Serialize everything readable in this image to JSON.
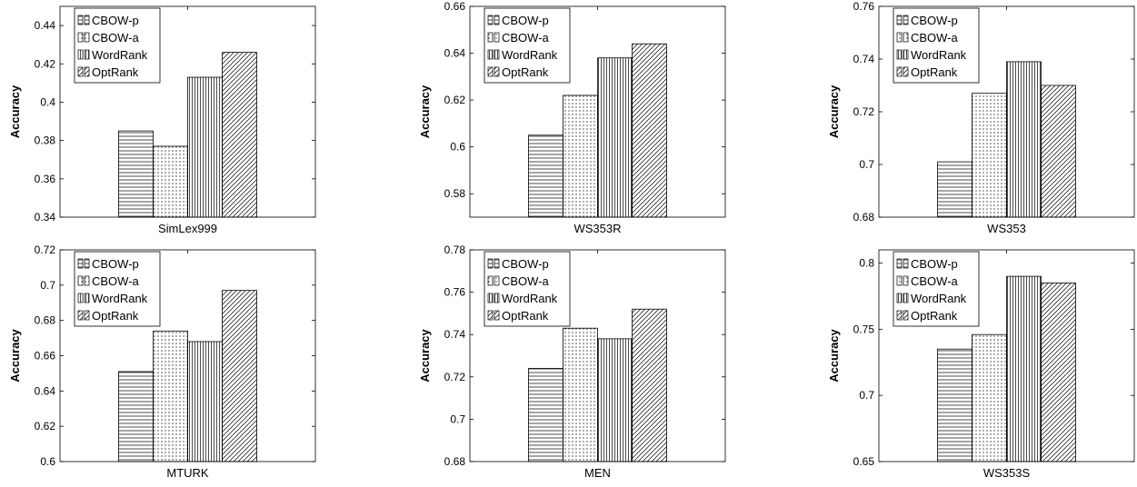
{
  "legend_labels": [
    "CBOW-p",
    "CBOW-a",
    "WordRank",
    "OptRank"
  ],
  "ylabel": "Accuracy",
  "chart_data": [
    {
      "type": "bar",
      "title": "",
      "xlabel": "SimLex999",
      "ylabel": "Accuracy",
      "categories": [
        "SimLex999"
      ],
      "series": [
        {
          "name": "CBOW-p",
          "values": [
            0.385
          ]
        },
        {
          "name": "CBOW-a",
          "values": [
            0.377
          ]
        },
        {
          "name": "WordRank",
          "values": [
            0.413
          ]
        },
        {
          "name": "OptRank",
          "values": [
            0.426
          ]
        }
      ],
      "ylim": [
        0.34,
        0.45
      ],
      "yticks": [
        0.34,
        0.36,
        0.38,
        0.4,
        0.42,
        0.44
      ],
      "ytick_labels": [
        "0.34",
        "0.36",
        "0.38",
        "0.4",
        "0.42",
        "0.44"
      ],
      "legend_position": "top-left",
      "grid": false
    },
    {
      "type": "bar",
      "title": "",
      "xlabel": "WS353R",
      "ylabel": "Accuracy",
      "categories": [
        "WS353R"
      ],
      "series": [
        {
          "name": "CBOW-p",
          "values": [
            0.605
          ]
        },
        {
          "name": "CBOW-a",
          "values": [
            0.622
          ]
        },
        {
          "name": "WordRank",
          "values": [
            0.638
          ]
        },
        {
          "name": "OptRank",
          "values": [
            0.644
          ]
        }
      ],
      "ylim": [
        0.57,
        0.66
      ],
      "yticks": [
        0.58,
        0.6,
        0.62,
        0.64,
        0.66
      ],
      "ytick_labels": [
        "0.58",
        "0.6",
        "0.62",
        "0.64",
        "0.66"
      ],
      "legend_position": "top-left",
      "grid": false
    },
    {
      "type": "bar",
      "title": "",
      "xlabel": "WS353",
      "ylabel": "Accuracy",
      "categories": [
        "WS353"
      ],
      "series": [
        {
          "name": "CBOW-p",
          "values": [
            0.701
          ]
        },
        {
          "name": "CBOW-a",
          "values": [
            0.727
          ]
        },
        {
          "name": "WordRank",
          "values": [
            0.739
          ]
        },
        {
          "name": "OptRank",
          "values": [
            0.73
          ]
        }
      ],
      "ylim": [
        0.68,
        0.76
      ],
      "yticks": [
        0.68,
        0.7,
        0.72,
        0.74,
        0.76
      ],
      "ytick_labels": [
        "0.68",
        "0.7",
        "0.72",
        "0.74",
        "0.76"
      ],
      "legend_position": "top-left",
      "grid": false
    },
    {
      "type": "bar",
      "title": "",
      "xlabel": "MTURK",
      "ylabel": "Accuracy",
      "categories": [
        "MTURK"
      ],
      "series": [
        {
          "name": "CBOW-p",
          "values": [
            0.651
          ]
        },
        {
          "name": "CBOW-a",
          "values": [
            0.674
          ]
        },
        {
          "name": "WordRank",
          "values": [
            0.668
          ]
        },
        {
          "name": "OptRank",
          "values": [
            0.697
          ]
        }
      ],
      "ylim": [
        0.6,
        0.72
      ],
      "yticks": [
        0.6,
        0.62,
        0.64,
        0.66,
        0.68,
        0.7,
        0.72
      ],
      "ytick_labels": [
        "0.6",
        "0.62",
        "0.64",
        "0.66",
        "0.68",
        "0.7",
        "0.72"
      ],
      "legend_position": "top-left",
      "grid": false
    },
    {
      "type": "bar",
      "title": "",
      "xlabel": "MEN",
      "ylabel": "Accuracy",
      "categories": [
        "MEN"
      ],
      "series": [
        {
          "name": "CBOW-p",
          "values": [
            0.724
          ]
        },
        {
          "name": "CBOW-a",
          "values": [
            0.743
          ]
        },
        {
          "name": "WordRank",
          "values": [
            0.738
          ]
        },
        {
          "name": "OptRank",
          "values": [
            0.752
          ]
        }
      ],
      "ylim": [
        0.68,
        0.78
      ],
      "yticks": [
        0.68,
        0.7,
        0.72,
        0.74,
        0.76,
        0.78
      ],
      "ytick_labels": [
        "0.68",
        "0.7",
        "0.72",
        "0.74",
        "0.76",
        "0.78"
      ],
      "legend_position": "top-left",
      "grid": false
    },
    {
      "type": "bar",
      "title": "",
      "xlabel": "WS353S",
      "ylabel": "Accuracy",
      "categories": [
        "WS353S"
      ],
      "series": [
        {
          "name": "CBOW-p",
          "values": [
            0.735
          ]
        },
        {
          "name": "CBOW-a",
          "values": [
            0.746
          ]
        },
        {
          "name": "WordRank",
          "values": [
            0.79
          ]
        },
        {
          "name": "OptRank",
          "values": [
            0.785
          ]
        }
      ],
      "ylim": [
        0.65,
        0.81
      ],
      "yticks": [
        0.65,
        0.7,
        0.75,
        0.8
      ],
      "ytick_labels": [
        "0.65",
        "0.7",
        "0.75",
        "0.8"
      ],
      "legend_position": "top-left",
      "grid": false
    }
  ]
}
